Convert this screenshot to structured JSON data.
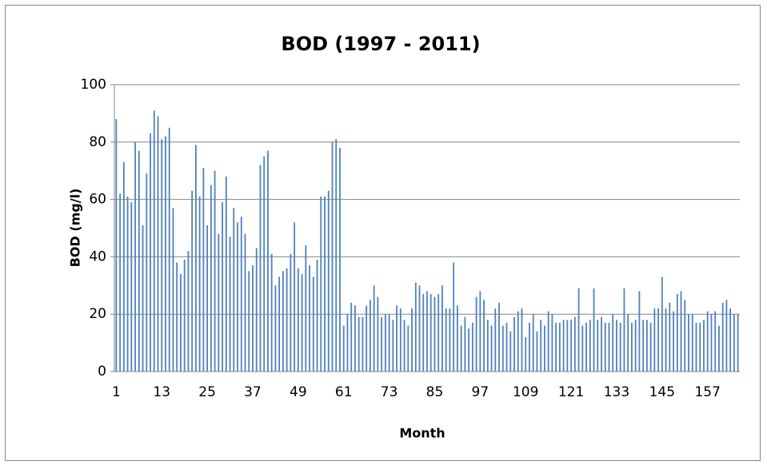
{
  "chart_data": {
    "type": "bar",
    "title": "BOD (1997 - 2011)",
    "x_label": "Month",
    "y_label": "BOD (mg/l)",
    "categories": [
      1,
      null,
      null,
      null,
      null,
      null,
      null,
      null,
      null,
      null,
      null,
      null,
      13,
      null,
      null,
      null,
      null,
      null,
      null,
      null,
      null,
      null,
      null,
      null,
      25,
      null,
      null,
      null,
      null,
      null,
      null,
      null,
      null,
      null,
      null,
      null,
      37,
      null,
      null,
      null,
      null,
      null,
      null,
      null,
      null,
      null,
      null,
      null,
      49,
      null,
      null,
      null,
      null,
      null,
      null,
      null,
      null,
      null,
      null,
      null,
      61,
      null,
      null,
      null,
      null,
      null,
      null,
      null,
      null,
      null,
      null,
      null,
      73,
      null,
      null,
      null,
      null,
      null,
      null,
      null,
      null,
      null,
      null,
      null,
      85,
      null,
      null,
      null,
      null,
      null,
      null,
      null,
      null,
      null,
      null,
      null,
      97,
      null,
      null,
      null,
      null,
      null,
      null,
      null,
      null,
      null,
      null,
      null,
      109,
      null,
      null,
      null,
      null,
      null,
      null,
      null,
      null,
      null,
      null,
      null,
      121,
      null,
      null,
      null,
      null,
      null,
      null,
      null,
      null,
      null,
      null,
      null,
      133,
      null,
      null,
      null,
      null,
      null,
      null,
      null,
      null,
      null,
      null,
      null,
      145,
      null,
      null,
      null,
      null,
      null,
      null,
      null,
      null,
      null,
      null,
      null,
      157,
      null,
      null,
      null,
      null,
      null,
      null,
      null,
      null
    ],
    "values": [
      88,
      62,
      73,
      61,
      59,
      80,
      77,
      51,
      69,
      83,
      91,
      89,
      81,
      82,
      85,
      57,
      38,
      34,
      39,
      42,
      63,
      79,
      61,
      71,
      51,
      65,
      70,
      48,
      59,
      68,
      47,
      57,
      52,
      54,
      48,
      35,
      37,
      43,
      72,
      75,
      77,
      41,
      30,
      33,
      35,
      36,
      41,
      52,
      36,
      34,
      44,
      37,
      33,
      39,
      61,
      61,
      63,
      80,
      81,
      78,
      16,
      20,
      24,
      23,
      19,
      19,
      23,
      25,
      30,
      26,
      19,
      20,
      20,
      18,
      23,
      22,
      18,
      16,
      22,
      31,
      30,
      27,
      28,
      27,
      26,
      27,
      30,
      22,
      22,
      38,
      23,
      16,
      19,
      15,
      17,
      26,
      28,
      25,
      18,
      16,
      22,
      24,
      16,
      17,
      14,
      19,
      21,
      22,
      12,
      17,
      20,
      14,
      18,
      16,
      21,
      20,
      17,
      17,
      18,
      18,
      18,
      19,
      29,
      16,
      17,
      18,
      29,
      18,
      19,
      17,
      17,
      20,
      18,
      17,
      29,
      20,
      17,
      18,
      28,
      18,
      18,
      17,
      22,
      22,
      33,
      22,
      24,
      21,
      27,
      28,
      25,
      20,
      20,
      17,
      17,
      18,
      21,
      20,
      21,
      16,
      24,
      25,
      22,
      20,
      20
    ],
    "color": "#4f81bd",
    "ylim": [
      0,
      100
    ],
    "yticks": [
      0,
      20,
      40,
      60,
      80,
      100
    ],
    "grid": true
  }
}
